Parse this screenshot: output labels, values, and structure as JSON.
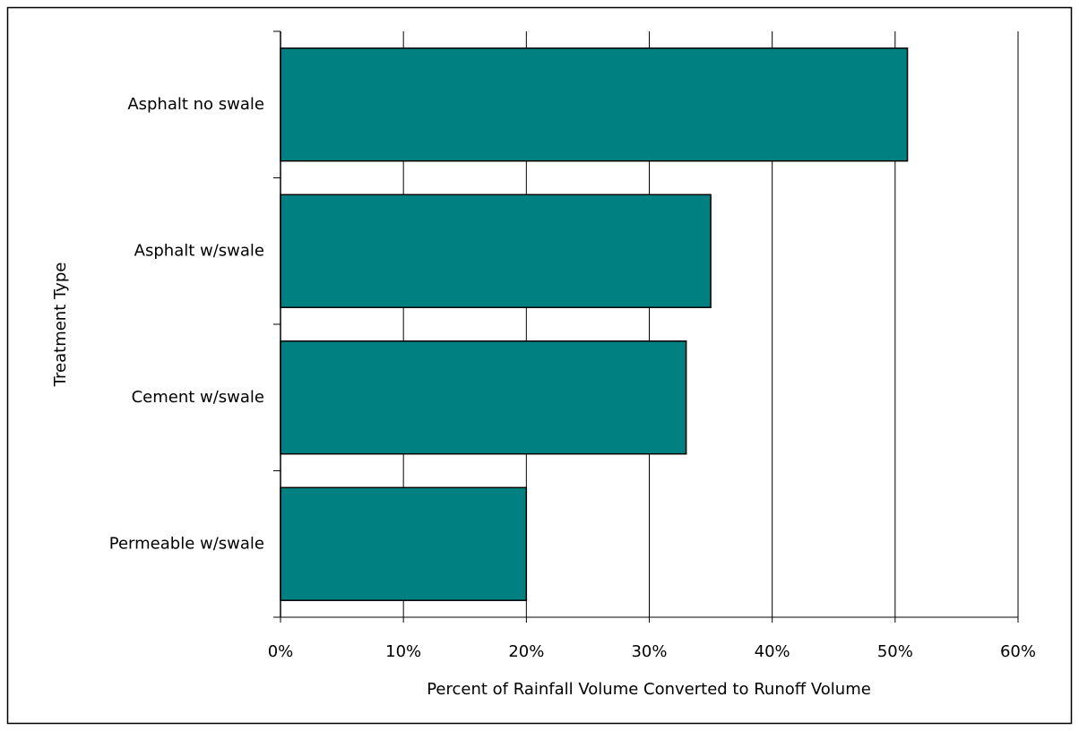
{
  "chart_data": {
    "type": "bar",
    "orientation": "horizontal",
    "categories": [
      "Asphalt no swale",
      "Asphalt w/swale",
      "Cement w/swale",
      "Permeable w/swale"
    ],
    "values": [
      51,
      35,
      33,
      20
    ],
    "color": "#008080",
    "xlabel": "Percent of Rainfall Volume Converted to Runoff Volume",
    "ylabel": "Treatment Type",
    "xlim": [
      0,
      60
    ],
    "xticks": [
      {
        "value": 0,
        "label": "0%"
      },
      {
        "value": 10,
        "label": "10%"
      },
      {
        "value": 20,
        "label": "20%"
      },
      {
        "value": 30,
        "label": "30%"
      },
      {
        "value": 40,
        "label": "40%"
      },
      {
        "value": 50,
        "label": "50%"
      },
      {
        "value": 60,
        "label": "60%"
      }
    ],
    "grid": true
  }
}
